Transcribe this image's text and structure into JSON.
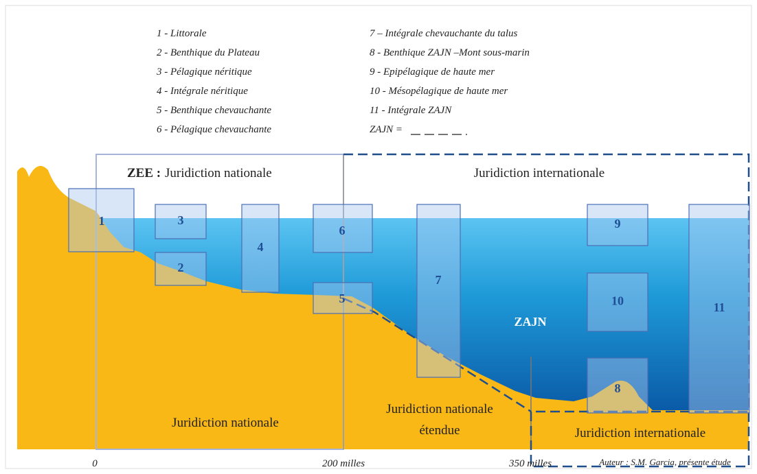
{
  "legend": {
    "left": [
      "1 - Littorale",
      "2 - Benthique du Plateau",
      "3 - Pélagique néritique",
      "4 - Intégrale néritique",
      "5 - Benthique chevauchante",
      "6 - Pélagique chevauchante"
    ],
    "right": [
      "7 – Intégrale chevauchante du talus",
      "8 - Benthique ZAJN –Mont sous-marin",
      "9 - Epipélagique de haute mer",
      "10 - Mésopélagique de haute mer",
      "11 - Intégrale ZAJN",
      "ZAJN ="
    ]
  },
  "regions": {
    "zee_prefix": "ZEE :",
    "zee": "Juridiction nationale",
    "international_top": "Juridiction internationale",
    "zajn": "ZAJN",
    "national": "Juridiction nationale",
    "extended": [
      "Juridiction nationale",
      "étendue"
    ],
    "international_bottom": "Juridiction internationale"
  },
  "boxes": [
    "1",
    "2",
    "3",
    "4",
    "5",
    "6",
    "7",
    "8",
    "9",
    "10",
    "11"
  ],
  "axis": [
    "0",
    "200 milles",
    "350 milles"
  ],
  "credit": "Auteur : S.M. Garcia, présente étude"
}
